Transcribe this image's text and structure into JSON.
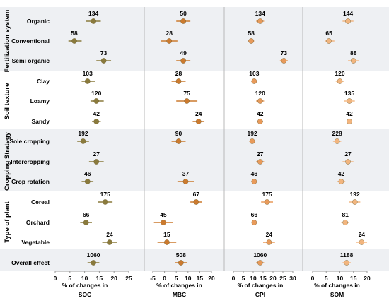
{
  "chart_data": {
    "type": "forest",
    "groups": [
      {
        "name": "Fertilization system",
        "rows": [
          "Organic",
          "Conventional",
          "Semi organic"
        ]
      },
      {
        "name": "Soil texture",
        "rows": [
          "Clay",
          "Loamy",
          "Sandy"
        ]
      },
      {
        "name": "Cropping Strategy",
        "rows": [
          "Sole cropping",
          "Intercropping",
          "Crop rotation"
        ]
      },
      {
        "name": "Type of plant",
        "rows": [
          "Cereal",
          "Orchard",
          "Vegetable"
        ]
      },
      {
        "name": "",
        "rows": [
          "Overall effect"
        ]
      }
    ],
    "panels": [
      {
        "xlabel": [
          "% of changes in",
          "SOC"
        ],
        "xlim": [
          0,
          25
        ],
        "ticks": [
          0,
          5,
          10,
          15,
          20,
          25
        ],
        "color": "#8a7a3c",
        "points": [
          {
            "n": "134",
            "mean": 13.0,
            "lo": 10.5,
            "hi": 15.5
          },
          {
            "n": "58",
            "mean": 6.5,
            "lo": 4.5,
            "hi": 9.0
          },
          {
            "n": "73",
            "mean": 16.5,
            "lo": 14.0,
            "hi": 19.0
          },
          {
            "n": "103",
            "mean": 11.0,
            "lo": 9.0,
            "hi": 13.5
          },
          {
            "n": "120",
            "mean": 14.0,
            "lo": 12.0,
            "hi": 16.5
          },
          {
            "n": "42",
            "mean": 14.0,
            "lo": 12.5,
            "hi": 15.5
          },
          {
            "n": "192",
            "mean": 9.5,
            "lo": 7.5,
            "hi": 11.5
          },
          {
            "n": "27",
            "mean": 14.0,
            "lo": 11.5,
            "hi": 16.5
          },
          {
            "n": "46",
            "mean": 11.0,
            "lo": 9.0,
            "hi": 13.0
          },
          {
            "n": "175",
            "mean": 17.0,
            "lo": 14.5,
            "hi": 19.5
          },
          {
            "n": "66",
            "mean": 10.5,
            "lo": 8.5,
            "hi": 12.5
          },
          {
            "n": "24",
            "mean": 18.5,
            "lo": 16.0,
            "hi": 21.0
          },
          {
            "n": "1060",
            "mean": 13.0,
            "lo": 11.0,
            "hi": 15.0
          }
        ]
      },
      {
        "xlabel": [
          "% of changes  in",
          "MBC"
        ],
        "xlim": [
          -5,
          20
        ],
        "ticks": [
          -5,
          0,
          5,
          10,
          15,
          20
        ],
        "color": "#cc7a2e",
        "points": [
          {
            "n": "50",
            "mean": 8.0,
            "lo": 5.0,
            "hi": 11.0
          },
          {
            "n": "28",
            "mean": 2.0,
            "lo": -1.5,
            "hi": 5.5
          },
          {
            "n": "49",
            "mean": 8.0,
            "lo": 5.0,
            "hi": 11.0
          },
          {
            "n": "28",
            "mean": 6.0,
            "lo": 3.0,
            "hi": 9.0
          },
          {
            "n": "75",
            "mean": 9.5,
            "lo": 5.0,
            "hi": 14.0
          },
          {
            "n": "24",
            "mean": 14.5,
            "lo": 12.0,
            "hi": 17.0
          },
          {
            "n": "90",
            "mean": 6.0,
            "lo": 3.0,
            "hi": 9.0
          },
          {
            "n": "37",
            "mean": 9.0,
            "lo": 5.5,
            "hi": 12.5
          },
          {
            "n": "67",
            "mean": 13.5,
            "lo": 11.0,
            "hi": 16.0
          },
          {
            "n": "45",
            "mean": -0.5,
            "lo": -4.5,
            "hi": 3.5
          },
          {
            "n": "15",
            "mean": 1.0,
            "lo": -3.0,
            "hi": 5.0
          },
          {
            "n": "508",
            "mean": 7.0,
            "lo": 4.5,
            "hi": 9.5
          }
        ],
        "skip_rows": [
          7
        ]
      },
      {
        "xlabel": [
          "% of changes  in",
          "CPI"
        ],
        "xlim": [
          0,
          30
        ],
        "ticks": [
          0,
          5,
          10,
          15,
          20,
          25,
          30
        ],
        "color": "#e89a5a",
        "points": [
          {
            "n": "134",
            "mean": 13.5,
            "lo": 11.5,
            "hi": 15.5
          },
          {
            "n": "58",
            "mean": 9.0,
            "lo": 7.5,
            "hi": 10.5
          },
          {
            "n": "73",
            "mean": 25.5,
            "lo": 23.5,
            "hi": 27.5
          },
          {
            "n": "103",
            "mean": 10.5,
            "lo": 9.0,
            "hi": 12.0
          },
          {
            "n": "120",
            "mean": 13.5,
            "lo": 11.5,
            "hi": 15.5
          },
          {
            "n": "42",
            "mean": 13.5,
            "lo": 12.0,
            "hi": 15.0
          },
          {
            "n": "192",
            "mean": 9.5,
            "lo": 8.0,
            "hi": 11.0
          },
          {
            "n": "27",
            "mean": 13.5,
            "lo": 11.5,
            "hi": 15.5
          },
          {
            "n": "46",
            "mean": 10.5,
            "lo": 9.0,
            "hi": 12.0
          },
          {
            "n": "175",
            "mean": 17.0,
            "lo": 14.0,
            "hi": 20.0
          },
          {
            "n": "66",
            "mean": 10.5,
            "lo": 9.5,
            "hi": 11.5
          },
          {
            "n": "24",
            "mean": 18.0,
            "lo": 15.0,
            "hi": 21.0
          },
          {
            "n": "1060",
            "mean": 13.5,
            "lo": 11.5,
            "hi": 15.5
          }
        ]
      },
      {
        "xlabel": [
          "% of changes  in",
          "SOM"
        ],
        "xlim": [
          0,
          20
        ],
        "ticks": [
          0,
          5,
          10,
          15,
          20
        ],
        "color": "#f2b57e",
        "points": [
          {
            "n": "144",
            "mean": 13.0,
            "lo": 11.0,
            "hi": 15.0
          },
          {
            "n": "65",
            "mean": 6.0,
            "lo": 4.5,
            "hi": 8.0
          },
          {
            "n": "88",
            "mean": 15.0,
            "lo": 13.0,
            "hi": 17.0
          },
          {
            "n": "120",
            "mean": 10.0,
            "lo": 8.5,
            "hi": 11.5
          },
          {
            "n": "135",
            "mean": 13.5,
            "lo": 11.5,
            "hi": 15.5
          },
          {
            "n": "42",
            "mean": 13.5,
            "lo": 12.5,
            "hi": 14.5
          },
          {
            "n": "228",
            "mean": 9.0,
            "lo": 7.5,
            "hi": 10.5
          },
          {
            "n": "27",
            "mean": 13.0,
            "lo": 11.0,
            "hi": 15.0
          },
          {
            "n": "42",
            "mean": 10.5,
            "lo": 9.0,
            "hi": 12.0
          },
          {
            "n": "192",
            "mean": 15.5,
            "lo": 13.5,
            "hi": 17.5
          },
          {
            "n": "81",
            "mean": 12.0,
            "lo": 10.5,
            "hi": 13.5
          },
          {
            "n": "24",
            "mean": 18.0,
            "lo": 16.0,
            "hi": 20.0
          },
          {
            "n": "1188",
            "mean": 12.5,
            "lo": 11.0,
            "hi": 14.0
          }
        ]
      }
    ],
    "colors": {
      "band": "#eef0f3",
      "separator": "#b8b8b8",
      "axis": "#9a9a9a"
    }
  }
}
